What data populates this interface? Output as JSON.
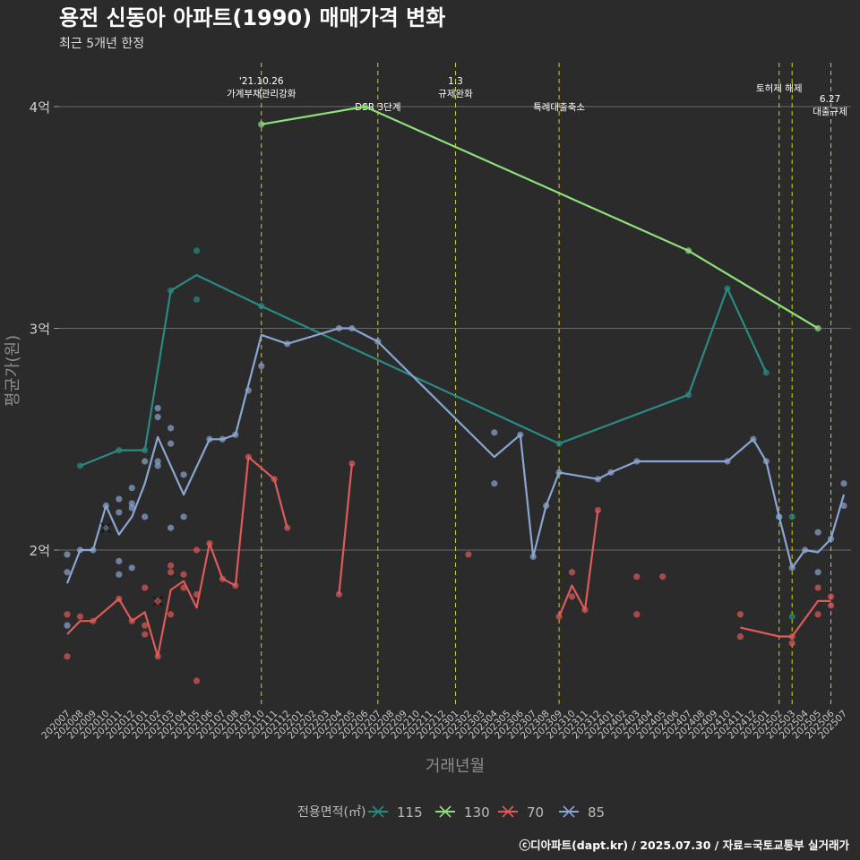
{
  "chart_data": {
    "type": "line",
    "title": "용전 신동아 아파트(1990) 매매가격 변화",
    "subtitle": "최근 5개년 한정",
    "xlabel": "거래년월",
    "ylabel": "평균가(원)",
    "caption": "ⓒ디아파트(dapt.kr) / 2025.07.30 / 자료=국토교통부 실거래가",
    "legend_title": "전용면적(㎡)",
    "legend_position": "bottom",
    "grid": true,
    "ylim": [
      1.3,
      4.3
    ],
    "y_ticks": [
      {
        "value": 2,
        "label": "2억"
      },
      {
        "value": 3,
        "label": "3억"
      },
      {
        "value": 4,
        "label": "4억"
      }
    ],
    "categories": [
      "202007",
      "202008",
      "202009",
      "202010",
      "202011",
      "202012",
      "202101",
      "202102",
      "202103",
      "202104",
      "202105",
      "202106",
      "202107",
      "202108",
      "202109",
      "202110",
      "202111",
      "202112",
      "202201",
      "202202",
      "202203",
      "202204",
      "202205",
      "202206",
      "202207",
      "202208",
      "202209",
      "202210",
      "202211",
      "202212",
      "202301",
      "202302",
      "202303",
      "202304",
      "202305",
      "202306",
      "202307",
      "202308",
      "202309",
      "202310",
      "202311",
      "202312",
      "202401",
      "202402",
      "202403",
      "202404",
      "202405",
      "202406",
      "202407",
      "202408",
      "202409",
      "202410",
      "202411",
      "202412",
      "202501",
      "202502",
      "202503",
      "202504",
      "202505",
      "202506",
      "202507"
    ],
    "annotations": [
      {
        "x": "202110",
        "lines": [
          "'21.10.26",
          "가계부채관리강화"
        ],
        "level": "high"
      },
      {
        "x": "202207",
        "lines": [
          "DSR 3단계"
        ],
        "level": "low"
      },
      {
        "x": "202301",
        "lines": [
          "1.3",
          "규제완화"
        ],
        "level": "high"
      },
      {
        "x": "202309",
        "lines": [
          "특례대출축소"
        ],
        "level": "low"
      },
      {
        "x": "202502",
        "lines": [
          "토허제 해제"
        ],
        "level": "mid"
      },
      {
        "x": "202503",
        "lines": [],
        "level": "none"
      },
      {
        "x": "202506",
        "lines": [
          "6.27",
          "대출규제"
        ],
        "level": "right"
      }
    ],
    "series": [
      {
        "name": "115",
        "color": "#2a8a84",
        "line": [
          [
            "202008",
            2.38
          ],
          [
            "202011",
            2.45
          ],
          [
            "202101",
            2.45
          ],
          [
            "202103",
            3.17
          ],
          [
            "202105",
            3.24
          ],
          [
            "202110",
            3.1
          ],
          [
            "202309",
            2.48
          ],
          [
            "202407",
            2.7
          ],
          [
            "202410",
            3.18
          ],
          [
            "202413",
            2.8
          ]
        ],
        "points": [
          [
            "202008",
            2.38
          ],
          [
            "202011",
            2.45
          ],
          [
            "202101",
            2.45
          ],
          [
            "202103",
            3.17
          ],
          [
            "202105",
            3.35
          ],
          [
            "202105",
            3.13
          ],
          [
            "202110",
            3.1
          ],
          [
            "202309",
            2.48
          ],
          [
            "202407",
            2.7
          ],
          [
            "202410",
            3.18
          ],
          [
            "202413",
            2.8
          ],
          [
            "202502",
            2.15
          ],
          [
            "202503",
            2.15
          ],
          [
            "202503",
            1.7
          ]
        ]
      },
      {
        "name": "130",
        "color": "#8fe07a",
        "line": [
          [
            "202110",
            3.92
          ],
          [
            "202206",
            4.0
          ],
          [
            "202407",
            3.35
          ],
          [
            "202505",
            3.0
          ]
        ],
        "points": [
          [
            "202110",
            3.92
          ],
          [
            "202206",
            4.0
          ],
          [
            "202407",
            3.35
          ],
          [
            "202505",
            3.0
          ]
        ]
      },
      {
        "name": "70",
        "color": "#e05a5a",
        "line_segments": [
          [
            [
              "202007",
              1.62
            ],
            [
              "202008",
              1.68
            ],
            [
              "202009",
              1.68
            ],
            [
              "202011",
              1.78
            ],
            [
              "202012",
              1.68
            ],
            [
              "202101",
              1.72
            ],
            [
              "202102",
              1.52
            ],
            [
              "202103",
              1.82
            ],
            [
              "202104",
              1.86
            ],
            [
              "202105",
              1.74
            ],
            [
              "202106",
              2.03
            ],
            [
              "202107",
              1.87
            ],
            [
              "202108",
              1.84
            ],
            [
              "202109",
              2.42
            ],
            [
              "202111",
              2.32
            ],
            [
              "202112",
              2.1
            ]
          ],
          [
            [
              "202204",
              1.8
            ],
            [
              "202205",
              2.39
            ]
          ],
          [
            [
              "202309",
              1.7
            ],
            [
              "202310",
              1.84
            ],
            [
              "202311",
              1.73
            ],
            [
              "202312",
              2.18
            ]
          ],
          [
            [
              "202411",
              1.65
            ],
            [
              "202502",
              1.61
            ],
            [
              "202503",
              1.61
            ],
            [
              "202505",
              1.77
            ],
            [
              "202506",
              1.77
            ]
          ]
        ],
        "points": [
          [
            "202007",
            1.71
          ],
          [
            "202007",
            1.52
          ],
          [
            "202008",
            1.7
          ],
          [
            "202009",
            1.68
          ],
          [
            "202011",
            1.78
          ],
          [
            "202012",
            1.68
          ],
          [
            "202101",
            1.83
          ],
          [
            "202101",
            1.66
          ],
          [
            "202101",
            1.62
          ],
          [
            "202102",
            1.77
          ],
          [
            "202102",
            1.52
          ],
          [
            "202103",
            1.93
          ],
          [
            "202103",
            1.9
          ],
          [
            "202103",
            1.71
          ],
          [
            "202104",
            1.89
          ],
          [
            "202104",
            1.83
          ],
          [
            "202105",
            2.0
          ],
          [
            "202105",
            1.8
          ],
          [
            "202105",
            1.41
          ],
          [
            "202106",
            2.03
          ],
          [
            "202107",
            1.87
          ],
          [
            "202108",
            1.84
          ],
          [
            "202109",
            2.42
          ],
          [
            "202111",
            2.32
          ],
          [
            "202112",
            2.1
          ],
          [
            "202204",
            1.8
          ],
          [
            "202205",
            2.39
          ],
          [
            "202302",
            1.98
          ],
          [
            "202309",
            1.7
          ],
          [
            "202310",
            1.9
          ],
          [
            "202310",
            1.79
          ],
          [
            "202311",
            1.73
          ],
          [
            "202312",
            2.18
          ],
          [
            "202403",
            1.88
          ],
          [
            "202403",
            1.71
          ],
          [
            "202405",
            1.88
          ],
          [
            "202411",
            1.71
          ],
          [
            "202411",
            1.61
          ],
          [
            "202503",
            1.61
          ],
          [
            "202503",
            1.58
          ],
          [
            "202505",
            1.83
          ],
          [
            "202505",
            1.71
          ],
          [
            "202506",
            1.79
          ],
          [
            "202506",
            1.75
          ]
        ]
      },
      {
        "name": "85",
        "color": "#8aa6d2",
        "line": [
          [
            "202007",
            1.85
          ],
          [
            "202008",
            2.0
          ],
          [
            "202009",
            2.0
          ],
          [
            "202010",
            2.2
          ],
          [
            "202011",
            2.07
          ],
          [
            "202012",
            2.15
          ],
          [
            "202101",
            2.3
          ],
          [
            "202102",
            2.51
          ],
          [
            "202104",
            2.25
          ],
          [
            "202106",
            2.5
          ],
          [
            "202107",
            2.5
          ],
          [
            "202108",
            2.52
          ],
          [
            "202110",
            2.97
          ],
          [
            "202112",
            2.93
          ],
          [
            "202204",
            3.0
          ],
          [
            "202205",
            3.0
          ],
          [
            "202207",
            2.94
          ],
          [
            "202304",
            2.42
          ],
          [
            "202306",
            2.52
          ],
          [
            "202307",
            1.97
          ],
          [
            "202308",
            2.2
          ],
          [
            "202309",
            2.35
          ],
          [
            "202312",
            2.32
          ],
          [
            "202401",
            2.35
          ],
          [
            "202403",
            2.4
          ],
          [
            "202410",
            2.4
          ],
          [
            "202412",
            2.5
          ],
          [
            "202501",
            2.4
          ],
          [
            "202502",
            2.15
          ],
          [
            "202503",
            1.92
          ],
          [
            "202504",
            2.0
          ],
          [
            "202505",
            1.99
          ],
          [
            "202506",
            2.05
          ],
          [
            "202507",
            2.25
          ]
        ],
        "points": [
          [
            "202007",
            1.98
          ],
          [
            "202007",
            1.9
          ],
          [
            "202007",
            1.66
          ],
          [
            "202008",
            2.0
          ],
          [
            "202009",
            2.0
          ],
          [
            "202010",
            2.2
          ],
          [
            "202011",
            2.23
          ],
          [
            "202011",
            2.17
          ],
          [
            "202011",
            1.95
          ],
          [
            "202011",
            1.89
          ],
          [
            "202012",
            2.28
          ],
          [
            "202012",
            2.21
          ],
          [
            "202012",
            2.19
          ],
          [
            "202012",
            1.92
          ],
          [
            "202101",
            2.4
          ],
          [
            "202101",
            2.15
          ],
          [
            "202102",
            2.64
          ],
          [
            "202102",
            2.6
          ],
          [
            "202102",
            2.4
          ],
          [
            "202102",
            2.38
          ],
          [
            "202103",
            2.55
          ],
          [
            "202103",
            2.48
          ],
          [
            "202103",
            2.1
          ],
          [
            "202104",
            2.34
          ],
          [
            "202104",
            2.15
          ],
          [
            "202106",
            2.5
          ],
          [
            "202107",
            2.5
          ],
          [
            "202108",
            2.52
          ],
          [
            "202109",
            2.72
          ],
          [
            "202110",
            2.83
          ],
          [
            "202112",
            2.93
          ],
          [
            "202204",
            3.0
          ],
          [
            "202205",
            3.0
          ],
          [
            "202207",
            2.94
          ],
          [
            "202304",
            2.53
          ],
          [
            "202304",
            2.3
          ],
          [
            "202306",
            2.52
          ],
          [
            "202307",
            1.97
          ],
          [
            "202308",
            2.2
          ],
          [
            "202309",
            2.35
          ],
          [
            "202312",
            2.32
          ],
          [
            "202401",
            2.35
          ],
          [
            "202403",
            2.4
          ],
          [
            "202410",
            2.4
          ],
          [
            "202412",
            2.5
          ],
          [
            "202501",
            2.4
          ],
          [
            "202502",
            2.15
          ],
          [
            "202503",
            1.92
          ],
          [
            "202504",
            2.0
          ],
          [
            "202505",
            2.08
          ],
          [
            "202505",
            1.9
          ],
          [
            "202506",
            2.05
          ],
          [
            "202507",
            2.3
          ],
          [
            "202507",
            2.2
          ]
        ]
      }
    ],
    "cancelled_marks": [
      {
        "series": "85",
        "x": "202010",
        "y": 2.1
      },
      {
        "series": "70",
        "x": "202102",
        "y": 1.77
      }
    ]
  }
}
